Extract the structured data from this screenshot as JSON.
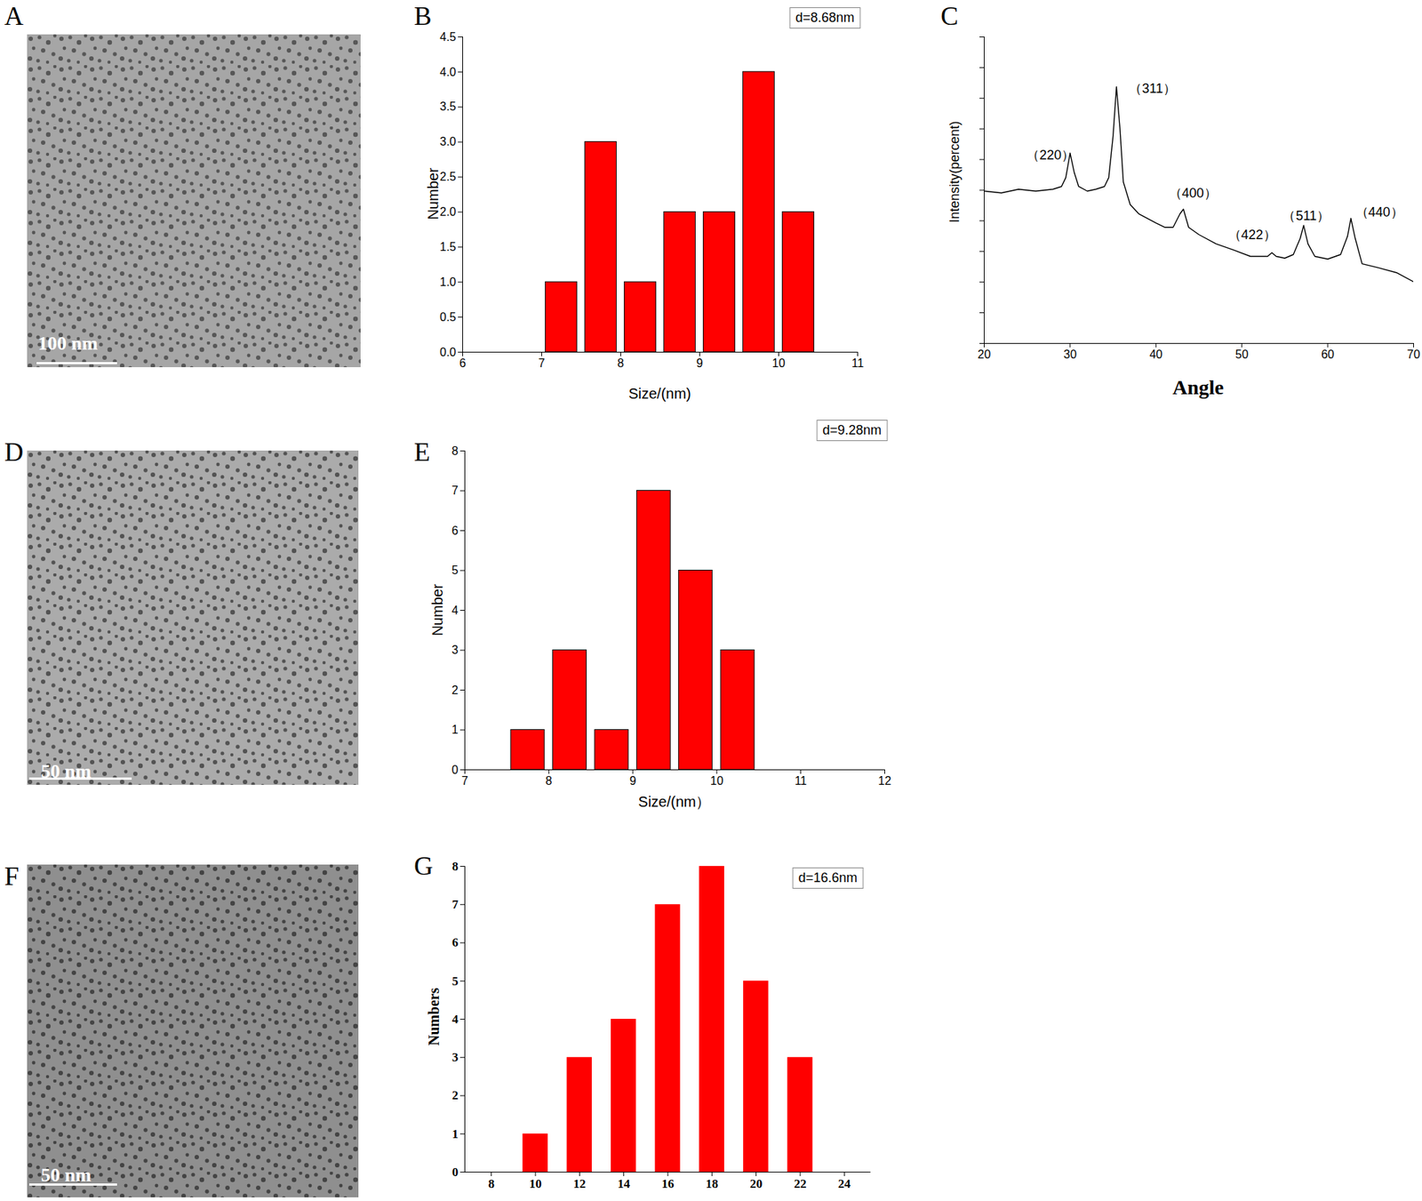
{
  "chart_data": [
    {
      "type": "image",
      "title": "A",
      "annotations": [
        {
          "text": "100 nm"
        }
      ]
    },
    {
      "type": "bar",
      "title": "B",
      "xlabel": "Size/(nm)",
      "ylabel": "Number",
      "x": [
        7.25,
        7.75,
        8.25,
        8.75,
        9.25,
        9.75,
        10.25
      ],
      "values": [
        1,
        3,
        1,
        2,
        2,
        4,
        2
      ],
      "color": "#ff0000",
      "xlim": [
        6,
        11
      ],
      "xticks": [
        6,
        7,
        8,
        9,
        10,
        11
      ],
      "ylim": [
        0,
        4.5
      ],
      "yticks": [
        {
          "value": 0,
          "label": "0.0"
        },
        {
          "value": 0.5,
          "label": "0.5"
        },
        {
          "value": 1,
          "label": "1.0"
        },
        {
          "value": 1.5,
          "label": "1.5"
        },
        {
          "value": 2,
          "label": "2.0"
        },
        {
          "value": 2.5,
          "label": "2.5"
        },
        {
          "value": 3,
          "label": "3.0"
        },
        {
          "value": 3.5,
          "label": "3.5"
        },
        {
          "value": 4,
          "label": "4.0"
        },
        {
          "value": 4.5,
          "label": "4.5"
        }
      ],
      "annotations": [
        {
          "text": "d=8.68nm"
        }
      ]
    },
    {
      "type": "line",
      "title": "C",
      "xlabel": "Angle",
      "ylabel": "Intensity(percent)",
      "x": [
        20,
        22,
        24,
        26,
        28,
        29,
        29.5,
        30,
        30.5,
        31,
        32,
        33,
        34,
        34.5,
        35,
        35.4,
        35.8,
        36.2,
        37,
        38,
        39,
        40,
        41,
        42,
        42.8,
        43.2,
        43.8,
        45,
        47,
        49,
        51,
        53,
        53.5,
        54,
        55,
        56,
        56.8,
        57.2,
        57.7,
        58.5,
        60,
        61.5,
        62.3,
        62.7,
        63.2,
        64,
        66,
        68,
        70
      ],
      "values": [
        49.7,
        49.1,
        50.3,
        49.7,
        50.3,
        51.2,
        54.1,
        62.1,
        55.6,
        51.2,
        49.7,
        50.3,
        51.2,
        54.1,
        67.5,
        83.7,
        70.4,
        52.7,
        45.3,
        42.3,
        40.8,
        39.3,
        37.9,
        37.9,
        42.3,
        43.8,
        37.9,
        35.5,
        32.5,
        30.5,
        28.4,
        28.4,
        29.6,
        28.4,
        27.8,
        29.0,
        34.3,
        38.5,
        32.5,
        28.4,
        27.5,
        29.0,
        34.9,
        40.8,
        34.3,
        26.0,
        24.6,
        23.1,
        20.1
      ],
      "color": "#000000",
      "xlim": [
        20,
        70
      ],
      "xticks": [
        20,
        30,
        40,
        50,
        60,
        70
      ],
      "ylim": [
        0,
        100
      ],
      "yticks": [
        0,
        10,
        20,
        30,
        40,
        50,
        60,
        70,
        80,
        90,
        100
      ],
      "tick_labels": "x",
      "annotations": [
        {
          "text": "（220）",
          "x": 27.7,
          "y": 61.5
        },
        {
          "text": "（311）",
          "x": 39.6,
          "y": 83
        },
        {
          "text": "（400）",
          "x": 44.3,
          "y": 49
        },
        {
          "text": "（422）",
          "x": 51.2,
          "y": 35.5
        },
        {
          "text": "（511）",
          "x": 57.5,
          "y": 41.7
        },
        {
          "text": "（440）",
          "x": 66,
          "y": 42.9
        }
      ]
    },
    {
      "type": "image",
      "title": "D",
      "annotations": [
        {
          "text": "50 nm"
        }
      ]
    },
    {
      "type": "bar",
      "title": "E",
      "xlabel": "Size/(nm）",
      "ylabel": "Number",
      "x": [
        7.75,
        8.25,
        8.75,
        9.25,
        9.75,
        10.25
      ],
      "values": [
        1,
        3,
        1,
        7,
        5,
        3
      ],
      "color": "#ff0000",
      "xlim": [
        7,
        12
      ],
      "xticks": [
        7,
        8,
        9,
        10,
        11,
        12
      ],
      "ylim": [
        0,
        8
      ],
      "yticks": [
        0,
        1,
        2,
        3,
        4,
        5,
        6,
        7,
        8
      ],
      "annotations": [
        {
          "text": "d=9.28nm"
        }
      ]
    },
    {
      "type": "image",
      "title": "F",
      "annotations": [
        {
          "text": "50 nm"
        }
      ]
    },
    {
      "type": "bar",
      "title": "G",
      "ylabel": "Numbers",
      "x": [
        10,
        12,
        14,
        16,
        18,
        20,
        22
      ],
      "values": [
        1,
        3,
        4,
        7,
        8,
        5,
        3
      ],
      "color": "#ff0000",
      "xlim": [
        6.8,
        25.2
      ],
      "xticks": [
        8,
        10,
        12,
        14,
        16,
        18,
        20,
        22,
        24
      ],
      "ylim": [
        0,
        8
      ],
      "yticks": [
        0,
        1,
        2,
        3,
        4,
        5,
        6,
        7,
        8
      ],
      "annotations": [
        {
          "text": "d=16.6nm"
        }
      ]
    }
  ]
}
